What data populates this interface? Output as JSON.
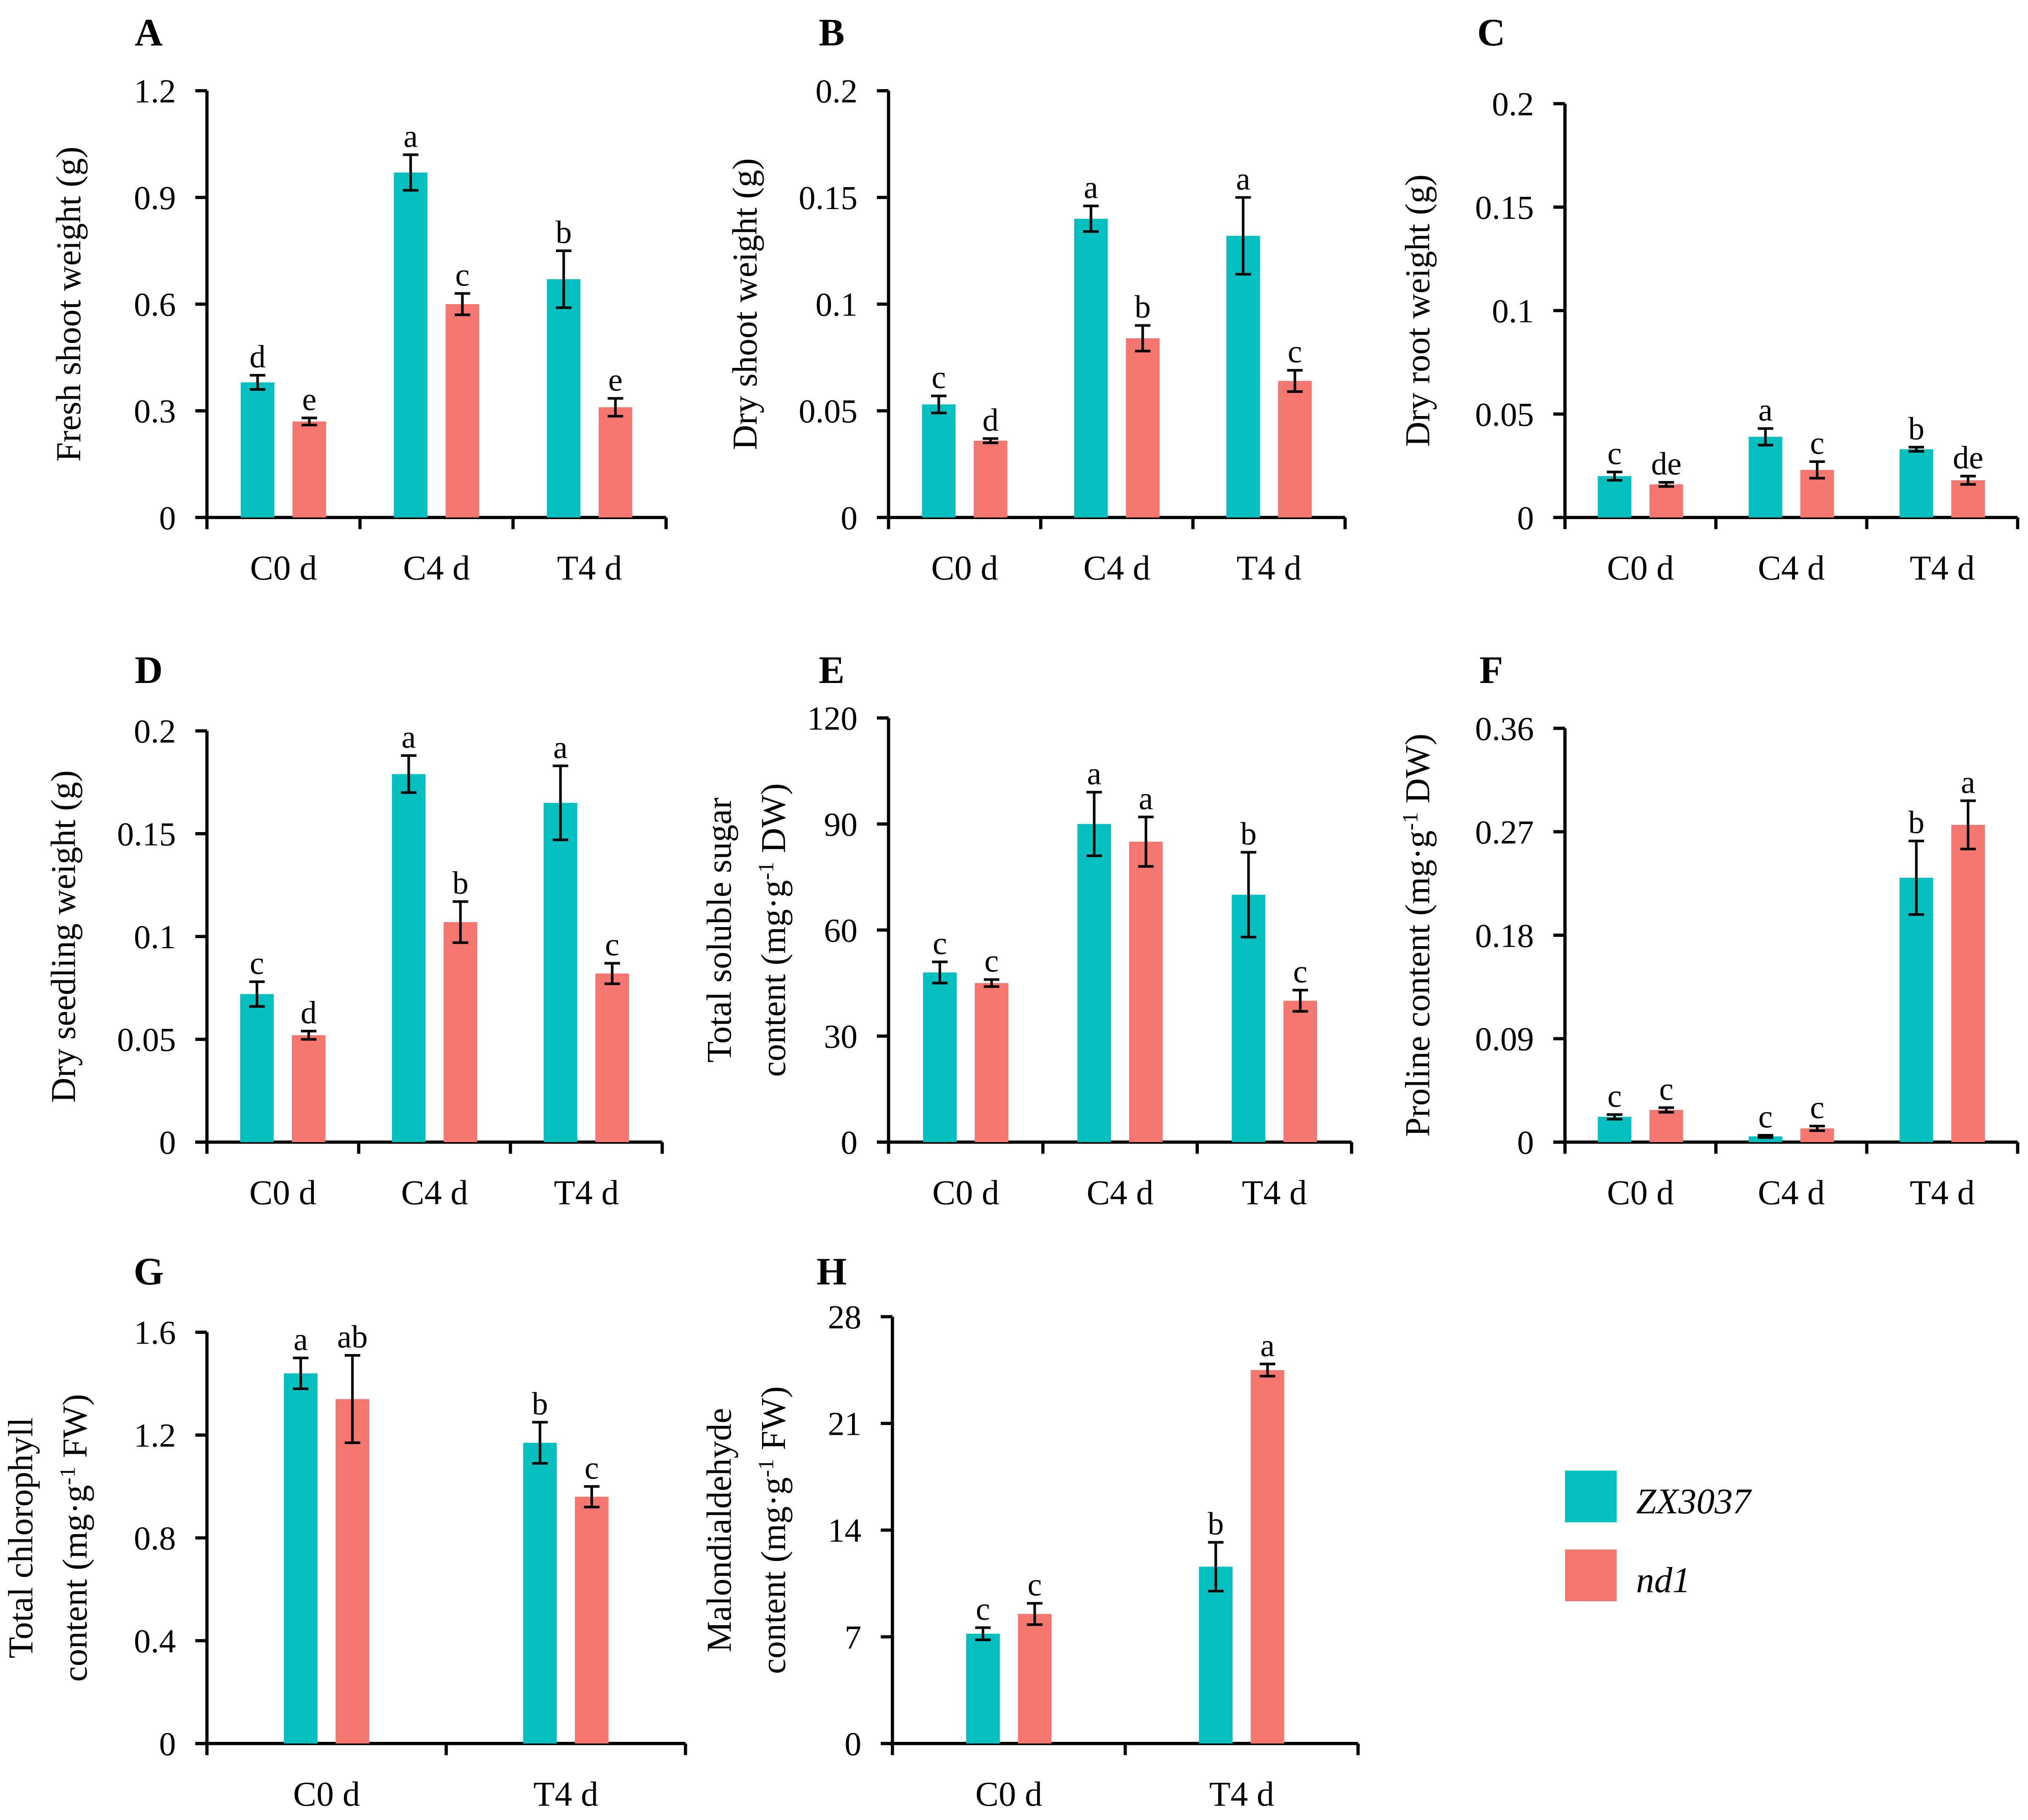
{
  "colors": {
    "ZX3037": "#03BFC0",
    "nd1": "#F4766E"
  },
  "legend": [
    {
      "name": "ZX3037",
      "color": "#03BFC0"
    },
    {
      "name": "nd1",
      "color": "#F4766E"
    }
  ],
  "chart_data": [
    {
      "panel": "A",
      "type": "bar",
      "categories": [
        "C0 d",
        "C4 d",
        "T4 d"
      ],
      "ylabel": [
        [
          {
            "t": "Fresh shoot weight (g)"
          }
        ]
      ],
      "ylim": [
        0,
        1.2
      ],
      "yticks": [
        "0",
        "0.3",
        "0.6",
        "0.9",
        "1.2"
      ],
      "series": [
        {
          "name": "ZX3037",
          "values": [
            0.38,
            0.97,
            0.67
          ],
          "errors": [
            0.02,
            0.05,
            0.08
          ],
          "letters": [
            "d",
            "a",
            "b"
          ]
        },
        {
          "name": "nd1",
          "values": [
            0.27,
            0.6,
            0.31
          ],
          "errors": [
            0.01,
            0.03,
            0.025
          ],
          "letters": [
            "e",
            "c",
            "e"
          ]
        }
      ]
    },
    {
      "panel": "B",
      "type": "bar",
      "categories": [
        "C0 d",
        "C4 d",
        "T4 d"
      ],
      "ylabel": [
        [
          {
            "t": "Dry shoot weight (g)"
          }
        ]
      ],
      "ylim": [
        0,
        0.2
      ],
      "yticks": [
        "0",
        "0.05",
        "0.1",
        "0.15",
        "0.2"
      ],
      "series": [
        {
          "name": "ZX3037",
          "values": [
            0.053,
            0.14,
            0.132
          ],
          "errors": [
            0.004,
            0.006,
            0.018
          ],
          "letters": [
            "c",
            "a",
            "a"
          ]
        },
        {
          "name": "nd1",
          "values": [
            0.036,
            0.084,
            0.064
          ],
          "errors": [
            0.001,
            0.006,
            0.005
          ],
          "letters": [
            "d",
            "b",
            "c"
          ]
        }
      ]
    },
    {
      "panel": "C",
      "type": "bar",
      "categories": [
        "C0 d",
        "C4 d",
        "T4 d"
      ],
      "ylabel": [
        [
          {
            "t": "Dry root weight (g)"
          }
        ]
      ],
      "ylim": [
        0,
        0.2
      ],
      "yticks": [
        "0",
        "0.05",
        "0.1",
        "0.15",
        "0.2"
      ],
      "series": [
        {
          "name": "ZX3037",
          "values": [
            0.02,
            0.039,
            0.033
          ],
          "errors": [
            0.002,
            0.004,
            0.001
          ],
          "letters": [
            "c",
            "a",
            "b"
          ]
        },
        {
          "name": "nd1",
          "values": [
            0.016,
            0.023,
            0.018
          ],
          "errors": [
            0.001,
            0.004,
            0.002
          ],
          "letters": [
            "de",
            "c",
            "de"
          ]
        }
      ]
    },
    {
      "panel": "D",
      "type": "bar",
      "categories": [
        "C0 d",
        "C4 d",
        "T4 d"
      ],
      "ylabel": [
        [
          {
            "t": "Dry seedling weight (g)"
          }
        ]
      ],
      "ylim": [
        0,
        0.2
      ],
      "yticks": [
        "0",
        "0.05",
        "0.1",
        "0.15",
        "0.2"
      ],
      "series": [
        {
          "name": "ZX3037",
          "values": [
            0.072,
            0.179,
            0.165
          ],
          "errors": [
            0.006,
            0.009,
            0.018
          ],
          "letters": [
            "c",
            "a",
            "a"
          ]
        },
        {
          "name": "nd1",
          "values": [
            0.052,
            0.107,
            0.082
          ],
          "errors": [
            0.002,
            0.01,
            0.005
          ],
          "letters": [
            "d",
            "b",
            "c"
          ]
        }
      ]
    },
    {
      "panel": "E",
      "type": "bar",
      "categories": [
        "C0 d",
        "C4 d",
        "T4 d"
      ],
      "ylabel": [
        [
          {
            "t": "Total soluble sugar"
          }
        ],
        [
          {
            "t": "content (mg·g"
          },
          {
            "t": "-1",
            "sup": true
          },
          {
            "t": " DW)"
          }
        ]
      ],
      "ylim": [
        0,
        120
      ],
      "yticks": [
        "0",
        "30",
        "60",
        "90",
        "120"
      ],
      "series": [
        {
          "name": "ZX3037",
          "values": [
            48,
            90,
            70
          ],
          "errors": [
            3,
            9,
            12
          ],
          "letters": [
            "c",
            "a",
            "b"
          ]
        },
        {
          "name": "nd1",
          "values": [
            45,
            85,
            40
          ],
          "errors": [
            1,
            7,
            3
          ],
          "letters": [
            "c",
            "a",
            "c"
          ]
        }
      ]
    },
    {
      "panel": "F",
      "type": "bar",
      "categories": [
        "C0 d",
        "C4 d",
        "T4 d"
      ],
      "ylabel": [
        [
          {
            "t": "Proline content (mg·g"
          },
          {
            "t": "-1",
            "sup": true
          },
          {
            "t": " DW)"
          }
        ]
      ],
      "ylim": [
        0,
        0.36
      ],
      "yticks": [
        "0",
        "0.09",
        "0.18",
        "0.27",
        "0.36"
      ],
      "series": [
        {
          "name": "ZX3037",
          "values": [
            0.022,
            0.005,
            0.23
          ],
          "errors": [
            0.002,
            0.001,
            0.032
          ],
          "letters": [
            "c",
            "c",
            "b"
          ]
        },
        {
          "name": "nd1",
          "values": [
            0.028,
            0.012,
            0.276
          ],
          "errors": [
            0.002,
            0.002,
            0.021
          ],
          "letters": [
            "c",
            "c",
            "a"
          ]
        }
      ]
    },
    {
      "panel": "G",
      "type": "bar",
      "categories": [
        "C0 d",
        "T4 d"
      ],
      "ylabel": [
        [
          {
            "t": "Total chlorophyll"
          }
        ],
        [
          {
            "t": "content (mg·g"
          },
          {
            "t": "-1",
            "sup": true
          },
          {
            "t": " FW)"
          }
        ]
      ],
      "ylim": [
        0,
        1.6
      ],
      "yticks": [
        "0",
        "0.4",
        "0.8",
        "1.2",
        "1.6"
      ],
      "series": [
        {
          "name": "ZX3037",
          "values": [
            1.44,
            1.17
          ],
          "errors": [
            0.06,
            0.08
          ],
          "letters": [
            "a",
            "b"
          ]
        },
        {
          "name": "nd1",
          "values": [
            1.34,
            0.96
          ],
          "errors": [
            0.17,
            0.04
          ],
          "letters": [
            "ab",
            "c"
          ]
        }
      ]
    },
    {
      "panel": "H",
      "type": "bar",
      "categories": [
        "C0 d",
        "T4 d"
      ],
      "ylabel": [
        [
          {
            "t": "Malondialdehyde"
          }
        ],
        [
          {
            "t": "content (mg·g"
          },
          {
            "t": "-1",
            "sup": true
          },
          {
            "t": " FW)"
          }
        ]
      ],
      "ylim": [
        0,
        28
      ],
      "yticks": [
        "0",
        "7",
        "14",
        "21",
        "28"
      ],
      "series": [
        {
          "name": "ZX3037",
          "values": [
            7.2,
            11.6
          ],
          "errors": [
            0.4,
            1.6
          ],
          "letters": [
            "c",
            "b"
          ]
        },
        {
          "name": "nd1",
          "values": [
            8.5,
            24.5
          ],
          "errors": [
            0.7,
            0.4
          ],
          "letters": [
            "c",
            "a"
          ]
        }
      ]
    }
  ]
}
